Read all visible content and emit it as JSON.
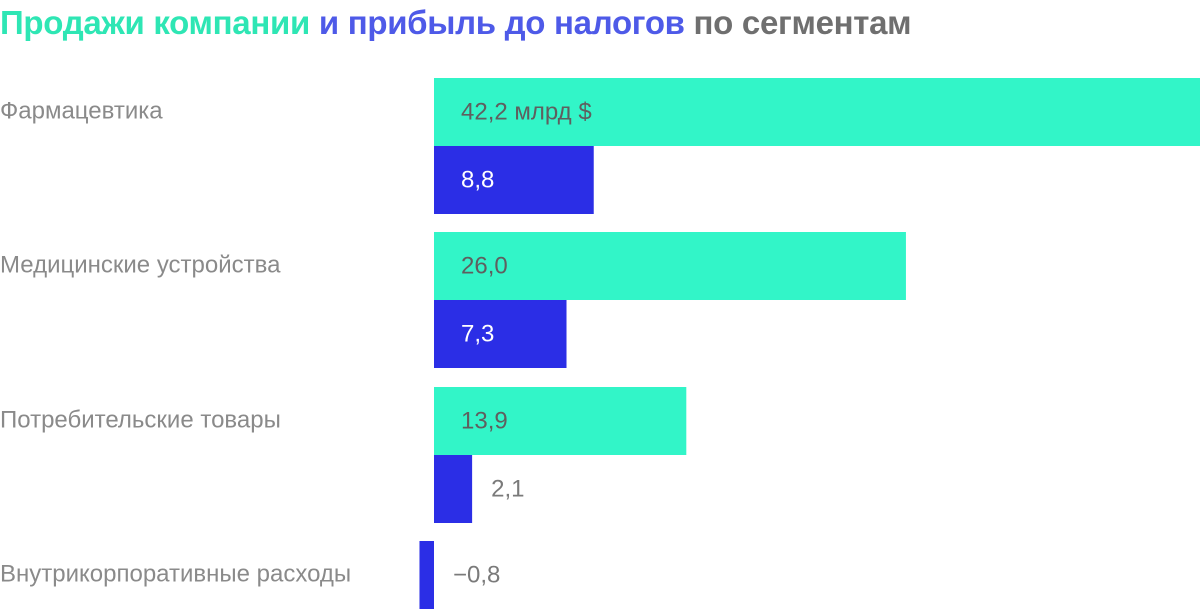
{
  "title_parts": [
    {
      "text": "Продажи компании",
      "color": "#2ee6b4"
    },
    {
      "text": "и прибыль до налогов",
      "color": "#4e5ae8"
    },
    {
      "text": "по сегментам",
      "color": "#6f6f6f"
    }
  ],
  "colors": {
    "sales": "#32f5c8",
    "profit": "#2b2ee6",
    "category_text": "#8a8a8a",
    "label_on_sales": "#5f5f5f",
    "label_on_profit": "#ffffff",
    "label_outside": "#7a7a7a"
  },
  "chart_data": {
    "type": "bar",
    "orientation": "horizontal",
    "categories": [
      "Фармацевтика",
      "Медицинские устройства",
      "Потребительские товары",
      "Внутрикорпоративные расходы"
    ],
    "series": [
      {
        "key": "sales",
        "values": [
          42.2,
          26.0,
          13.9,
          null
        ],
        "labels": [
          "42,2 млрд $",
          "26,0",
          "13,9",
          ""
        ]
      },
      {
        "key": "profit",
        "values": [
          8.8,
          7.3,
          2.1,
          -0.8
        ],
        "labels": [
          "8,8",
          "7,3",
          "2,1",
          "−0,8"
        ]
      }
    ],
    "xlim": [
      -0.8,
      42.2
    ],
    "grid": false,
    "legend": "none"
  }
}
